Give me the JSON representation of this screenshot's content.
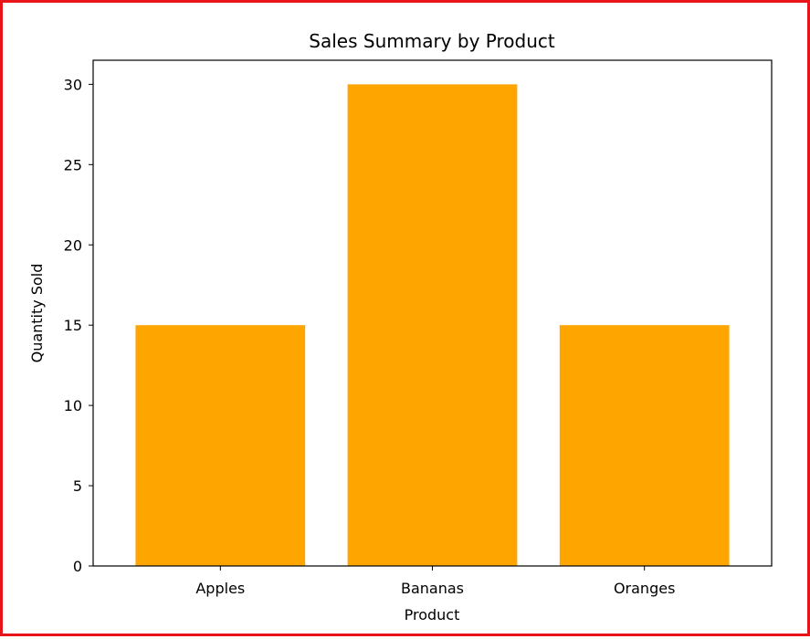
{
  "chart_data": {
    "type": "bar",
    "title": "Sales Summary by Product",
    "xlabel": "Product",
    "ylabel": "Quantity Sold",
    "categories": [
      "Apples",
      "Bananas",
      "Oranges"
    ],
    "values": [
      15,
      30,
      15
    ],
    "ylim": [
      0,
      31.5
    ],
    "yticks": [
      0,
      5,
      10,
      15,
      20,
      25,
      30
    ],
    "bar_color": "#ffa500",
    "grid": false,
    "legend": "none"
  },
  "colors": {
    "frame_border": "#e8141a",
    "axis": "#000000",
    "background": "#ffffff"
  }
}
